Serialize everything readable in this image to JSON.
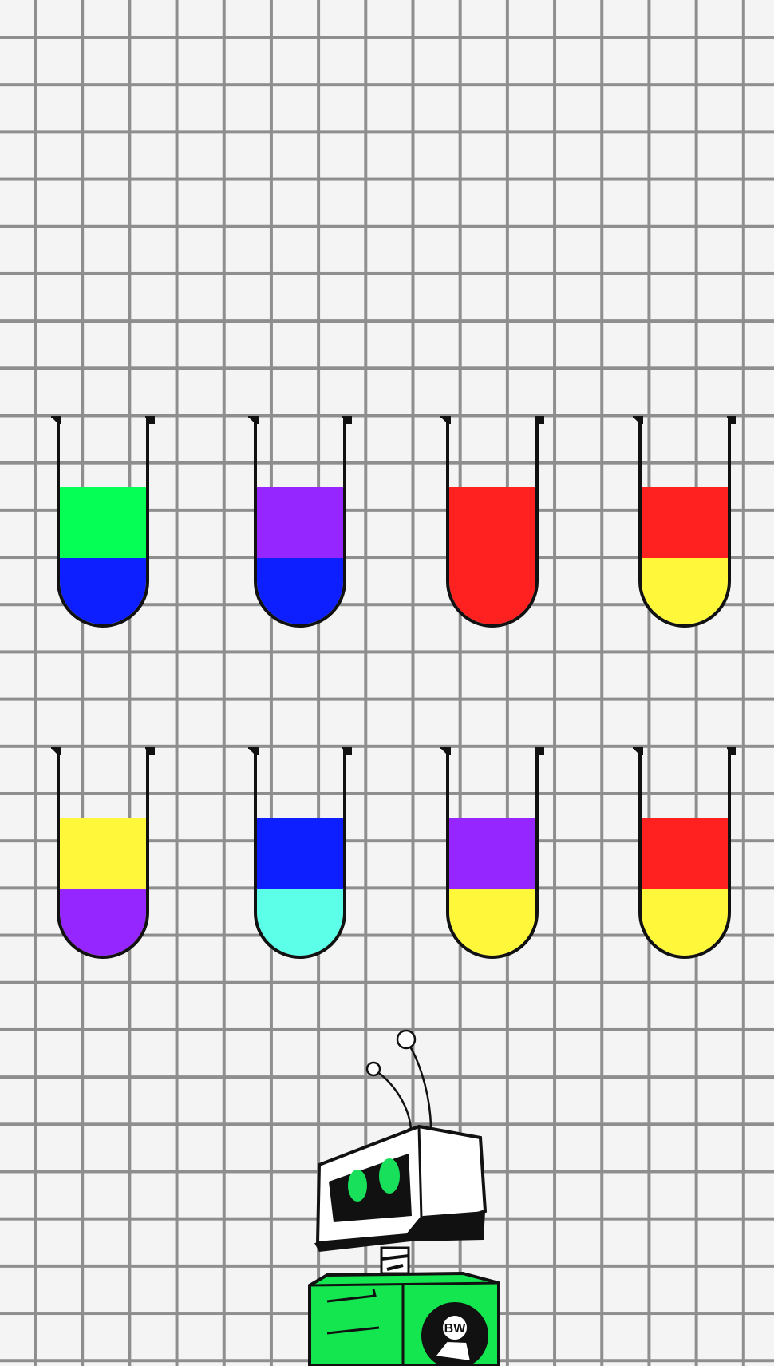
{
  "game": {
    "background": "graph-paper-grid",
    "grid_color": "#8e8e8e",
    "paper_color": "#f4f4f4"
  },
  "tubes": [
    {
      "id": 1,
      "layers_bottom_to_top": [
        "#0d1fff",
        "#05ff55"
      ]
    },
    {
      "id": 2,
      "layers_bottom_to_top": [
        "#0d1fff",
        "#9526ff"
      ]
    },
    {
      "id": 3,
      "layers_bottom_to_top": [
        "#ff2020",
        "#ff2020"
      ]
    },
    {
      "id": 4,
      "layers_bottom_to_top": [
        "#fff83a",
        "#ff2020"
      ]
    },
    {
      "id": 5,
      "layers_bottom_to_top": [
        "#9526ff",
        "#fff83a"
      ]
    },
    {
      "id": 6,
      "layers_bottom_to_top": [
        "#5cffe8",
        "#0d1fff"
      ]
    },
    {
      "id": 7,
      "layers_bottom_to_top": [
        "#fff83a",
        "#9526ff"
      ]
    },
    {
      "id": 8,
      "layers_bottom_to_top": [
        "#fff83a",
        "#ff2020"
      ]
    }
  ],
  "tube_capacity": 4,
  "robot": {
    "eye_color": "#18e05a",
    "body_color": "#14e650",
    "badge_text": "BW"
  }
}
